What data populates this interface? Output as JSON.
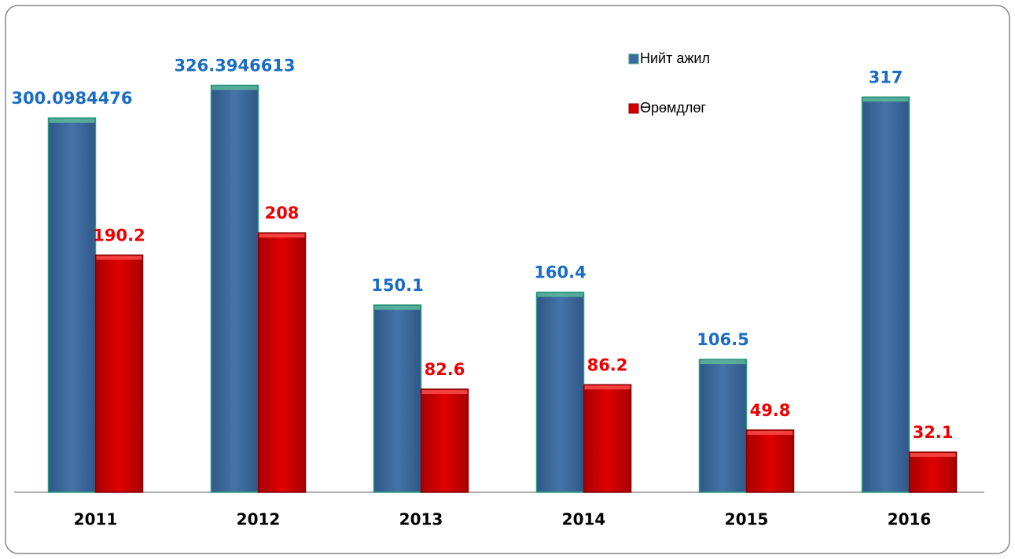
{
  "chart_data": {
    "type": "bar",
    "categories": [
      "2011",
      "2012",
      "2013",
      "2014",
      "2015",
      "2016"
    ],
    "series": [
      {
        "name": "Нийт ажил",
        "color": "#3f6a9e",
        "values": [
          300.0984476,
          326.3946613,
          150.1,
          160.4,
          106.5,
          317
        ]
      },
      {
        "name": "Өрөмдлөг",
        "color": "#d40000",
        "values": [
          190.2,
          208,
          82.6,
          86.2,
          49.8,
          32.1
        ]
      }
    ],
    "ylim": [
      0,
      350
    ],
    "legend": "top-right"
  }
}
